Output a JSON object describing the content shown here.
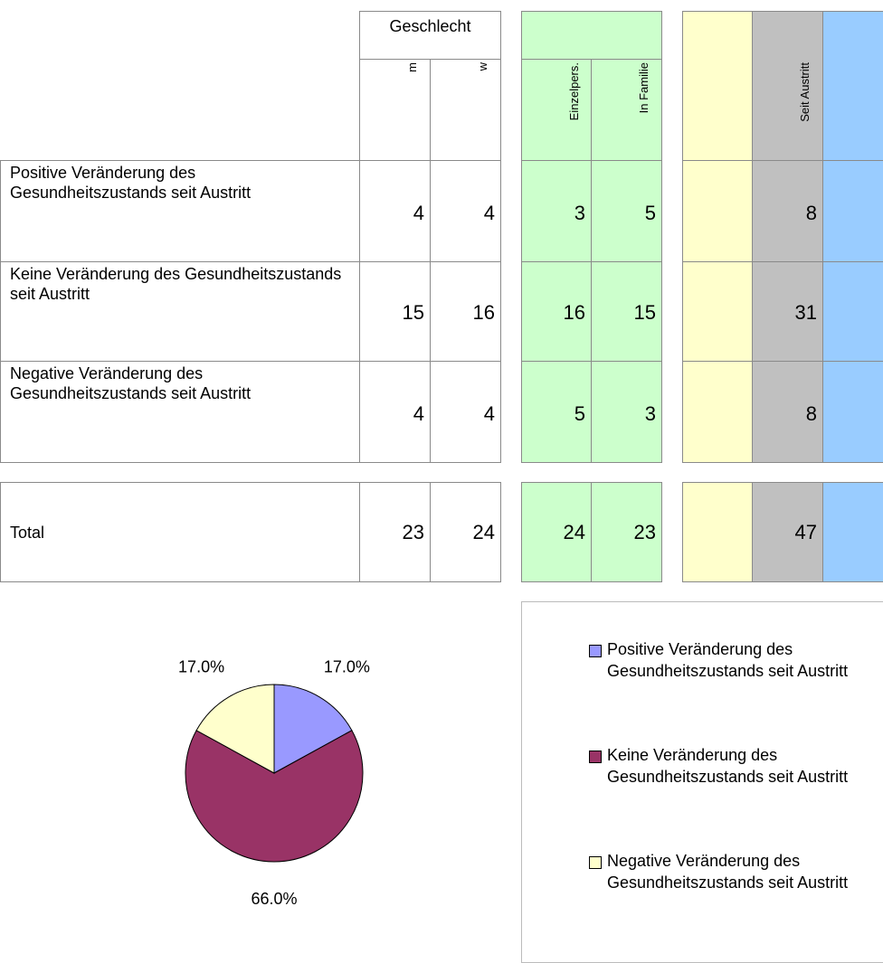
{
  "table": {
    "header": {
      "group": "Geschlecht",
      "columns": [
        "m",
        "w",
        "Einzelpers.",
        "In Familie",
        "Seit Austritt"
      ]
    },
    "rows": [
      {
        "label": "Positive Veränderung des Gesundheitszustands seit Austritt",
        "values": [
          4,
          4,
          3,
          5,
          8
        ]
      },
      {
        "label": "Keine Veränderung des Gesundheitszustands seit Austritt",
        "values": [
          15,
          16,
          16,
          15,
          31
        ]
      },
      {
        "label": "Negative Veränderung des Gesundheitszustands seit Austritt",
        "values": [
          4,
          4,
          5,
          3,
          8
        ]
      }
    ],
    "total": {
      "label": "Total",
      "values": [
        23,
        24,
        24,
        23,
        47
      ]
    }
  },
  "chart_data": {
    "type": "pie",
    "categories": [
      "Positive Veränderung des Gesundheitszustands seit Austritt",
      "Keine Veränderung des Gesundheitszustands seit Austritt",
      "Negative Veränderung des Gesundheitszustands seit Austritt"
    ],
    "values": [
      17,
      66,
      17
    ],
    "value_labels": [
      "17.0%",
      "66.0%",
      "17.0%"
    ],
    "colors": [
      "#9999ff",
      "#993366",
      "#ffffcc"
    ],
    "legend": "right"
  }
}
